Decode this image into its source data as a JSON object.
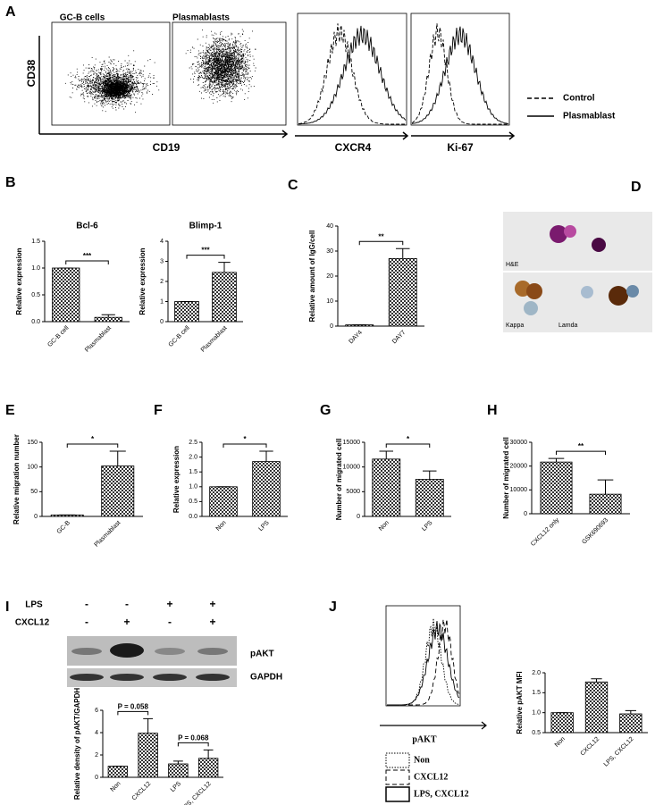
{
  "panels": [
    "A",
    "B",
    "C",
    "D",
    "E",
    "F",
    "G",
    "H",
    "I",
    "J"
  ],
  "panel_a": {
    "scatter_titles": [
      "GC-B cells",
      "Plasmablasts"
    ],
    "y_label": "CD38",
    "x_label": "CD19",
    "hist_x_labels": [
      "CXCR4",
      "Ki-67"
    ],
    "legend": [
      "Control",
      "Plasmablast"
    ]
  },
  "panel_d": {
    "labels": [
      "H&E",
      "Kappa",
      "Lamda"
    ]
  },
  "panel_i": {
    "row_labels": [
      "LPS",
      "CXCL12"
    ],
    "lps": [
      "-",
      "-",
      "+",
      "+"
    ],
    "cxcl12": [
      "-",
      "+",
      "-",
      "+"
    ],
    "bands": [
      "pAKT",
      "GAPDH"
    ]
  },
  "panel_j": {
    "x_label": "pAKT",
    "legend": [
      "Non",
      "CXCL12",
      "LPS, CXCL12"
    ]
  },
  "chart_data": [
    {
      "type": "bar",
      "title": "Bcl-6",
      "y_label": "Relative expression",
      "categories": [
        "GC-B cell",
        "Plasmablast"
      ],
      "values": [
        1.0,
        0.08
      ],
      "errors": [
        0,
        0.05
      ],
      "ylim": [
        0,
        1.5
      ],
      "yticks": [
        {
          "value": 0,
          "label": "0.0"
        },
        {
          "value": 0.5,
          "label": "0.5"
        },
        {
          "value": 1,
          "label": "1.0"
        },
        {
          "value": 1.5,
          "label": "1.5"
        }
      ],
      "annotations": [
        "***"
      ]
    },
    {
      "type": "bar",
      "title": "Blimp-1",
      "y_label": "Relative expression",
      "categories": [
        "GC-B cell",
        "Plasmablast"
      ],
      "values": [
        1.0,
        2.45
      ],
      "errors": [
        0,
        0.5
      ],
      "ylim": [
        0,
        4
      ],
      "yticks": [
        0,
        1,
        2,
        3,
        4
      ],
      "annotations": [
        "***"
      ]
    },
    {
      "type": "bar",
      "y_label": "Relative amount of IgG/cell",
      "categories": [
        "DAY4",
        "DAY7"
      ],
      "values": [
        0.5,
        27
      ],
      "errors": [
        0,
        4
      ],
      "ylim": [
        0,
        40
      ],
      "yticks": [
        0,
        10,
        20,
        30,
        40
      ],
      "annotations": [
        "**"
      ]
    },
    {
      "type": "bar",
      "y_label": "Relative migration number",
      "categories": [
        "GC-B",
        "Plasmablast"
      ],
      "values": [
        3,
        102
      ],
      "errors": [
        0,
        30
      ],
      "ylim": [
        0,
        150
      ],
      "yticks": [
        0,
        50,
        100,
        150
      ],
      "annotations": [
        "*"
      ]
    },
    {
      "type": "bar",
      "y_label": "Relative expression",
      "categories": [
        "Non",
        "LPS"
      ],
      "values": [
        1.0,
        1.85
      ],
      "errors": [
        0,
        0.35
      ],
      "ylim": [
        0,
        2.5
      ],
      "yticks": [
        {
          "value": 0,
          "label": "0.0"
        },
        {
          "value": 0.5,
          "label": "0.5"
        },
        {
          "value": 1,
          "label": "1.0"
        },
        {
          "value": 1.5,
          "label": "1.5"
        },
        {
          "value": 2,
          "label": "2.0"
        },
        {
          "value": 2.5,
          "label": "2.5"
        }
      ],
      "annotations": [
        "*"
      ]
    },
    {
      "type": "bar",
      "y_label": "Number of migrated cell",
      "categories": [
        "Non",
        "LPS"
      ],
      "values": [
        11600,
        7500
      ],
      "errors": [
        1600,
        1700
      ],
      "ylim": [
        0,
        15000
      ],
      "yticks": [
        0,
        5000,
        10000,
        15000
      ],
      "annotations": [
        "*"
      ]
    },
    {
      "type": "bar",
      "y_label": "Number of migrated cell",
      "categories": [
        "CXCL12 only",
        "GSK690693"
      ],
      "values": [
        21700,
        8200
      ],
      "errors": [
        1500,
        6000
      ],
      "ylim": [
        0,
        30000
      ],
      "yticks": [
        0,
        10000,
        20000,
        30000
      ],
      "annotations": [
        "**"
      ]
    },
    {
      "type": "bar",
      "y_label": "Relative density of pAKT/GAPDH",
      "categories": [
        "Non",
        "CXCL12",
        "LPS",
        "LPS, CXCL12"
      ],
      "values": [
        1.0,
        3.95,
        1.2,
        1.7
      ],
      "errors": [
        0,
        1.3,
        0.25,
        0.75
      ],
      "ylim": [
        0,
        6
      ],
      "yticks": [
        0,
        2,
        4,
        6
      ],
      "annotations": [
        "P = 0.058",
        "P = 0.068"
      ]
    },
    {
      "type": "bar",
      "y_label": "Relative pAKT MFI",
      "categories": [
        "Non",
        "CXCL12",
        "LPS, CXCL12"
      ],
      "values": [
        1.0,
        1.77,
        0.97
      ],
      "errors": [
        0,
        0.08,
        0.08
      ],
      "ylim": [
        0.5,
        2.0
      ],
      "yticks": [
        {
          "value": 0.5,
          "label": "0.5"
        },
        {
          "value": 1,
          "label": "1.0"
        },
        {
          "value": 1.5,
          "label": "1.5"
        },
        {
          "value": 2,
          "label": "2.0"
        }
      ],
      "annotations": []
    }
  ]
}
